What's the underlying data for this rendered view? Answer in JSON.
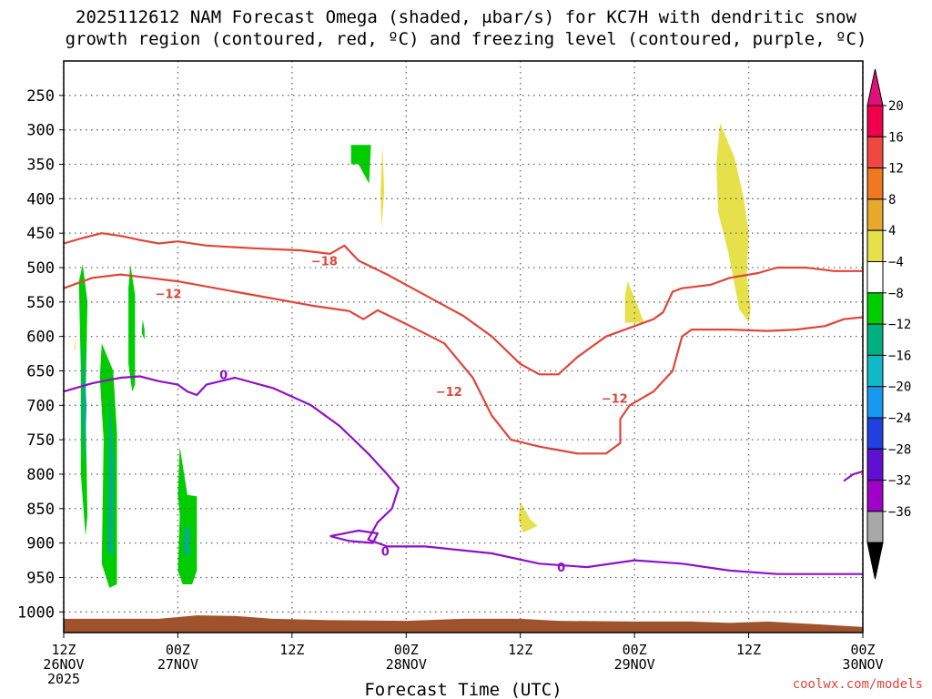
{
  "chart_data": {
    "type": "time-height cross-section",
    "title_line1": "2025112612 NAM Forecast Omega (shaded, μbar/s) for KC7H with dendritic snow",
    "title_line2": "growth region (contoured, red, ºC) and freezing level (contoured, purple, ºC)",
    "xlabel": "Forecast Time (UTC)",
    "x_ticks": [
      {
        "hour": 0,
        "lines": [
          "12Z",
          "26NOV",
          "2025"
        ]
      },
      {
        "hour": 12,
        "lines": [
          "00Z",
          "27NOV"
        ]
      },
      {
        "hour": 24,
        "lines": [
          "12Z"
        ]
      },
      {
        "hour": 36,
        "lines": [
          "00Z",
          "28NOV"
        ]
      },
      {
        "hour": 48,
        "lines": [
          "12Z"
        ]
      },
      {
        "hour": 60,
        "lines": [
          "00Z",
          "29NOV"
        ]
      },
      {
        "hour": 72,
        "lines": [
          "12Z"
        ]
      },
      {
        "hour": 84,
        "lines": [
          "00Z",
          "30NOV"
        ]
      }
    ],
    "x_range_hours": [
      0,
      84
    ],
    "y_axis": "pressure (hPa)",
    "y_ticks": [
      250,
      300,
      350,
      400,
      450,
      500,
      550,
      600,
      650,
      700,
      750,
      800,
      850,
      900,
      950,
      1000
    ],
    "y_range": [
      200,
      1030
    ],
    "grid": true,
    "colorbar": {
      "labels": [
        "20",
        "16",
        "12",
        "8",
        "4",
        "−4",
        "−8",
        "−12",
        "−16",
        "−20",
        "−24",
        "−28",
        "−32",
        "−36"
      ],
      "colors": [
        "#f0004c",
        "#f04840",
        "#f07820",
        "#e8a82c",
        "#e6e04a",
        "#ffffff",
        "#00cc00",
        "#00b080",
        "#10b8c8",
        "#1898f0",
        "#2040e0",
        "#6010d0",
        "#a000c8",
        "#a8a8a8"
      ],
      "top_arrow_color": "#e0107a",
      "bottom_arrow_color": "#000000"
    },
    "contour_labels": [
      {
        "text": "−18",
        "hour": 27.4,
        "p": 490,
        "color": "#e0453a"
      },
      {
        "text": "−12",
        "hour": 11.0,
        "p": 538,
        "color": "#e0453a"
      },
      {
        "text": "−12",
        "hour": 40.5,
        "p": 680,
        "color": "#e0453a"
      },
      {
        "text": "−12",
        "hour": 57.9,
        "p": 690,
        "color": "#e0453a"
      },
      {
        "text": "0",
        "hour": 16.8,
        "p": 655,
        "color": "#9010c8"
      },
      {
        "text": "0",
        "hour": 33.8,
        "p": 912,
        "color": "#9010c8"
      },
      {
        "text": "0",
        "hour": 52.3,
        "p": 935,
        "color": "#9010c8"
      }
    ],
    "series": [
      {
        "line": "dendritic_upper",
        "color": "#e0453a",
        "points": [
          [
            0,
            465
          ],
          [
            2,
            457
          ],
          [
            4,
            450
          ],
          [
            6,
            454
          ],
          [
            8,
            460
          ],
          [
            10,
            465
          ],
          [
            12,
            462
          ],
          [
            15,
            468
          ],
          [
            20,
            472
          ],
          [
            25,
            475
          ],
          [
            28,
            480
          ],
          [
            29.5,
            468
          ],
          [
            31,
            490
          ],
          [
            34,
            510
          ],
          [
            38,
            540
          ],
          [
            42,
            570
          ],
          [
            45,
            600
          ],
          [
            48,
            640
          ],
          [
            50,
            655
          ],
          [
            52,
            655
          ],
          [
            54,
            630
          ],
          [
            57,
            600
          ],
          [
            60,
            585
          ],
          [
            62,
            575
          ],
          [
            63,
            565
          ],
          [
            64,
            535
          ],
          [
            65,
            530
          ],
          [
            68,
            525
          ],
          [
            70,
            515
          ],
          [
            73,
            508
          ],
          [
            75,
            500
          ],
          [
            78,
            500
          ],
          [
            81,
            505
          ],
          [
            84,
            505
          ]
        ]
      },
      {
        "line": "dendritic_lower",
        "color": "#e0453a",
        "points": [
          [
            0,
            530
          ],
          [
            3,
            515
          ],
          [
            6,
            510
          ],
          [
            9,
            515
          ],
          [
            12,
            520
          ],
          [
            18,
            535
          ],
          [
            22,
            545
          ],
          [
            26,
            555
          ],
          [
            30,
            563
          ],
          [
            31.5,
            575
          ],
          [
            33,
            562
          ],
          [
            36,
            582
          ],
          [
            40,
            610
          ],
          [
            43,
            660
          ],
          [
            45,
            715
          ],
          [
            47,
            750
          ],
          [
            50,
            760
          ],
          [
            52,
            765
          ],
          [
            54,
            770
          ],
          [
            57,
            770
          ],
          [
            58.5,
            755
          ],
          [
            58.5,
            720
          ],
          [
            59.5,
            700
          ],
          [
            62,
            680
          ],
          [
            64,
            650
          ],
          [
            65,
            600
          ],
          [
            66,
            590
          ],
          [
            70,
            590
          ],
          [
            74,
            592
          ],
          [
            77,
            590
          ],
          [
            80,
            585
          ],
          [
            82,
            575
          ],
          [
            84,
            572
          ]
        ]
      },
      {
        "line": "freezing_level",
        "color": "#9010c8",
        "points": [
          [
            0,
            680
          ],
          [
            3,
            668
          ],
          [
            6,
            660
          ],
          [
            8,
            658
          ],
          [
            10,
            665
          ],
          [
            12,
            670
          ],
          [
            13,
            680
          ],
          [
            14,
            685
          ],
          [
            15,
            670
          ],
          [
            18,
            660
          ],
          [
            22,
            675
          ],
          [
            26,
            700
          ],
          [
            29,
            730
          ],
          [
            32,
            770
          ],
          [
            34,
            800
          ],
          [
            35.2,
            820
          ],
          [
            34.5,
            850
          ],
          [
            33,
            870
          ],
          [
            32,
            895
          ],
          [
            34,
            905
          ],
          [
            38,
            905
          ],
          [
            45,
            915
          ],
          [
            50,
            930
          ],
          [
            55,
            935
          ],
          [
            60,
            925
          ],
          [
            65,
            930
          ],
          [
            70,
            940
          ],
          [
            75,
            945
          ],
          [
            80,
            945
          ],
          [
            84,
            945
          ]
        ]
      },
      {
        "line": "freezing_small_loop",
        "color": "#9010c8",
        "points": [
          [
            28,
            890
          ],
          [
            31,
            882
          ],
          [
            33,
            886
          ],
          [
            32.5,
            900
          ],
          [
            30,
            897
          ],
          [
            28,
            890
          ]
        ]
      },
      {
        "line": "freezing_right_edge",
        "color": "#9010c8",
        "points": [
          [
            82,
            810
          ],
          [
            83,
            800
          ],
          [
            84,
            796
          ]
        ]
      }
    ],
    "omega_regions": [
      {
        "value_range": "-8 to -4",
        "color": "#00cc00",
        "points": [
          [
            2.0,
            495
          ],
          [
            2.5,
            550
          ],
          [
            2.3,
            700
          ],
          [
            2.5,
            860
          ],
          [
            2.3,
            890
          ],
          [
            1.8,
            800
          ],
          [
            1.8,
            650
          ],
          [
            1.6,
            520
          ]
        ]
      },
      {
        "value_range": "-12 to -8",
        "color": "#00b080",
        "points": [
          [
            2.0,
            600
          ],
          [
            2.4,
            700
          ],
          [
            2.2,
            790
          ],
          [
            1.9,
            720
          ]
        ]
      },
      {
        "value_range": "-8 to -4",
        "color": "#00cc00",
        "points": [
          [
            4.0,
            610
          ],
          [
            5.2,
            650
          ],
          [
            5.6,
            740
          ],
          [
            5.6,
            960
          ],
          [
            4.8,
            965
          ],
          [
            4.0,
            930
          ],
          [
            4.2,
            750
          ],
          [
            3.8,
            660
          ]
        ]
      },
      {
        "value_range": "-12 to -8",
        "color": "#00b080",
        "points": [
          [
            4.8,
            680
          ],
          [
            5.3,
            780
          ],
          [
            5.2,
            920
          ],
          [
            4.6,
            910
          ],
          [
            4.7,
            790
          ]
        ]
      },
      {
        "value_range": "-8 to -4",
        "color": "#00cc00",
        "points": [
          [
            7.0,
            495
          ],
          [
            7.5,
            540
          ],
          [
            7.5,
            670
          ],
          [
            7.2,
            680
          ],
          [
            6.8,
            640
          ],
          [
            6.8,
            530
          ]
        ]
      },
      {
        "value_range": "-8 to -4",
        "color": "#00cc00",
        "points": [
          [
            8.3,
            575
          ],
          [
            8.5,
            590
          ],
          [
            8.5,
            605
          ],
          [
            8.2,
            595
          ]
        ]
      },
      {
        "value_range": "-8 to -4",
        "color": "#00cc00",
        "points": [
          [
            12.2,
            760
          ],
          [
            13.0,
            830
          ],
          [
            14.0,
            832
          ],
          [
            14.0,
            940
          ],
          [
            13.5,
            960
          ],
          [
            12.5,
            960
          ],
          [
            12.0,
            940
          ],
          [
            12.2,
            860
          ],
          [
            12.0,
            830
          ]
        ]
      },
      {
        "value_range": "-12 to -8",
        "color": "#00b080",
        "points": [
          [
            12.7,
            875
          ],
          [
            13.3,
            880
          ],
          [
            13.2,
            920
          ],
          [
            12.6,
            915
          ]
        ]
      },
      {
        "value_range": "-8 to -4",
        "color": "#00cc00",
        "points": [
          [
            30.2,
            322
          ],
          [
            32.3,
            322
          ],
          [
            32.1,
            378
          ],
          [
            31.0,
            350
          ],
          [
            30.2,
            350
          ]
        ]
      },
      {
        "value_range": "4 to 8",
        "color": "#e6e04a",
        "points": [
          [
            33.5,
            323
          ],
          [
            33.7,
            390
          ],
          [
            33.4,
            443
          ],
          [
            33.3,
            390
          ]
        ]
      },
      {
        "value_range": "4 to 8",
        "color": "#e6e04a",
        "points": [
          [
            1.1,
            615
          ],
          [
            1.3,
            600
          ],
          [
            1.2,
            620
          ],
          [
            1.2,
            625
          ]
        ]
      },
      {
        "value_range": "4 to 8",
        "color": "#e6e04a",
        "points": [
          [
            69.0,
            290
          ],
          [
            70.5,
            340
          ],
          [
            71.5,
            400
          ],
          [
            72.0,
            450
          ],
          [
            71.8,
            510
          ],
          [
            72.2,
            560
          ],
          [
            72.0,
            580
          ],
          [
            71.0,
            560
          ],
          [
            69.9,
            480
          ],
          [
            68.8,
            420
          ],
          [
            68.6,
            350
          ]
        ]
      },
      {
        "value_range": "4 to 8",
        "color": "#e6e04a",
        "points": [
          [
            59.3,
            520
          ],
          [
            60.3,
            555
          ],
          [
            61.0,
            580
          ],
          [
            59.0,
            580
          ],
          [
            59.0,
            540
          ]
        ]
      },
      {
        "value_range": "4 to 8",
        "color": "#e6e04a",
        "points": [
          [
            48.0,
            840
          ],
          [
            49.0,
            865
          ],
          [
            49.8,
            875
          ],
          [
            48.3,
            885
          ],
          [
            47.8,
            865
          ]
        ]
      }
    ],
    "ground_terrain": {
      "color": "#a0522d",
      "top_points": [
        [
          0,
          1010
        ],
        [
          5,
          1010
        ],
        [
          10,
          1010
        ],
        [
          14,
          1005
        ],
        [
          18,
          1006
        ],
        [
          22,
          1010
        ],
        [
          28,
          1012
        ],
        [
          36,
          1013
        ],
        [
          42,
          1010
        ],
        [
          48,
          1010
        ],
        [
          52,
          1013
        ],
        [
          60,
          1014
        ],
        [
          66,
          1014
        ],
        [
          70,
          1016
        ],
        [
          74,
          1014
        ],
        [
          78,
          1017
        ],
        [
          84,
          1022
        ]
      ]
    }
  },
  "credit": "coolwx.com/models"
}
